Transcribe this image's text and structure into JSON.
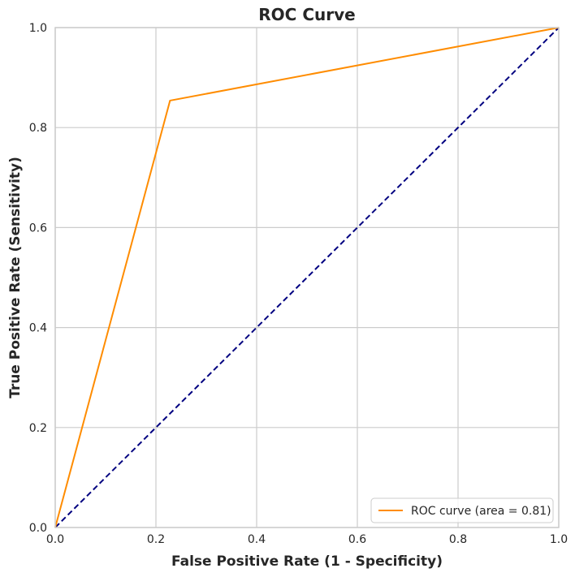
{
  "chart_data": {
    "type": "line",
    "title": "ROC Curve",
    "xlabel": "False Positive Rate (1 - Specificity)",
    "ylabel": "True Positive Rate (Sensitivity)",
    "xlim": [
      0,
      1
    ],
    "ylim": [
      0,
      1
    ],
    "xticks": [
      "0.0",
      "0.2",
      "0.4",
      "0.6",
      "0.8",
      "1.0"
    ],
    "yticks": [
      "0.0",
      "0.2",
      "0.4",
      "0.6",
      "0.8",
      "1.0"
    ],
    "grid": true,
    "legend_position": "lower-right",
    "series": [
      {
        "name": "ROC curve (area = 0.81)",
        "color": "#ff8c00",
        "style": "solid",
        "x": [
          0.0,
          0.228,
          1.0
        ],
        "y": [
          0.0,
          0.854,
          1.0
        ]
      },
      {
        "color": "#000080",
        "style": "dashed",
        "x": [
          0.0,
          1.0
        ],
        "y": [
          0.0,
          1.0
        ]
      }
    ]
  }
}
